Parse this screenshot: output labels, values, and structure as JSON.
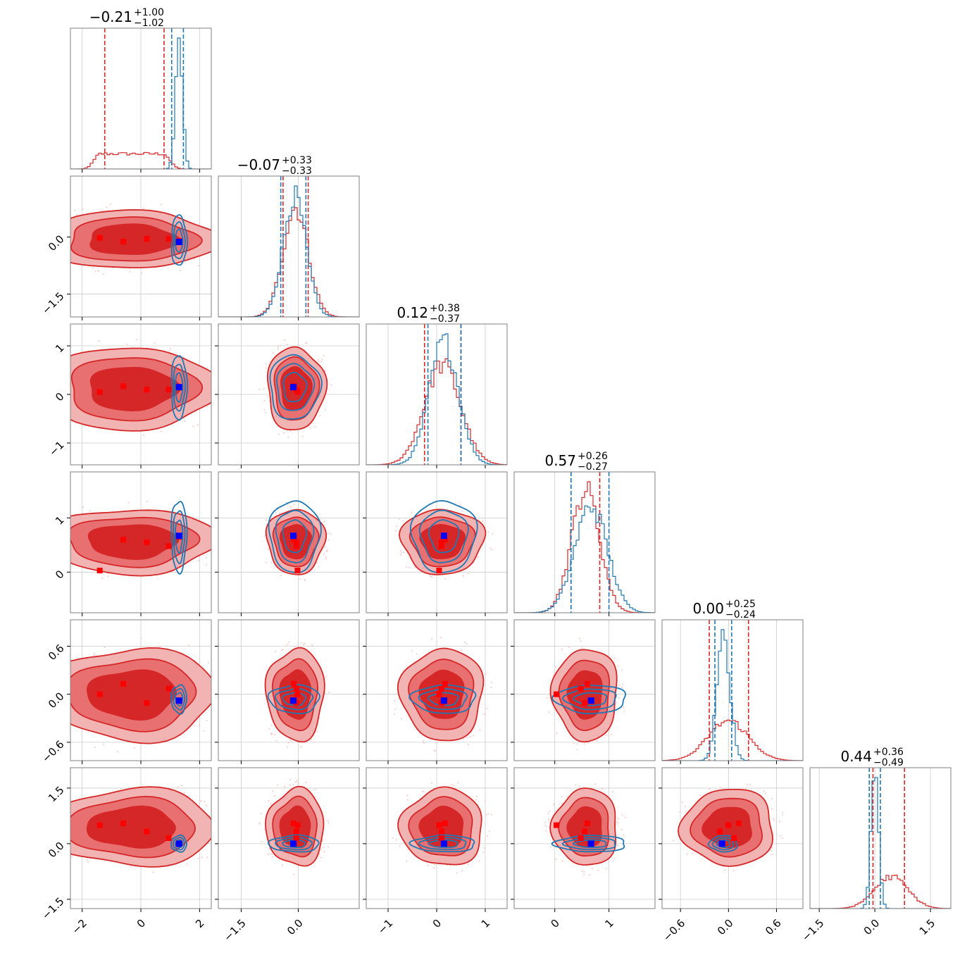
{
  "chart_data": {
    "type": "corner",
    "n_params": 6,
    "colors": {
      "red": "#d62728",
      "red_mid": "#e87070",
      "red_light": "#f2b3b3",
      "blue": "#1f77b4",
      "marker_red": "#ff0000",
      "marker_blue": "#0000ff",
      "grid": "#cccccc"
    },
    "series": [
      {
        "name": "",
        "color": "#d62728",
        "style": "filled contours + histograms"
      },
      {
        "name": "",
        "color": "#1f77b4",
        "style": "line contours + histograms"
      }
    ],
    "params": [
      {
        "range": [
          -2.4,
          2.4
        ],
        "ticks": [
          -2,
          0,
          2
        ],
        "tick_labels": [
          "−2",
          "0",
          "2"
        ],
        "title_value": "−0.21",
        "title_plus": "+1.00",
        "title_minus": "−1.02",
        "red": {
          "mean": -0.3,
          "std": 1.25,
          "flat": true
        },
        "blue": {
          "mean": 1.3,
          "std": 0.12
        },
        "red_q": [
          -1.23,
          0.79
        ],
        "blue_q": [
          1.05,
          1.45
        ]
      },
      {
        "range": [
          -2.1,
          1.6
        ],
        "ticks": [
          -1.5,
          0.0
        ],
        "tick_labels": [
          "−1.5",
          "0.0"
        ],
        "title_value": "−0.07",
        "title_plus": "+0.33",
        "title_minus": "−0.33",
        "red": {
          "mean": -0.07,
          "std": 0.33
        },
        "blue": {
          "mean": -0.1,
          "std": 0.3
        },
        "red_q": [
          -0.4,
          0.26
        ],
        "blue_q": [
          -0.46,
          0.2
        ]
      },
      {
        "range": [
          -1.45,
          1.45
        ],
        "ticks": [
          -1,
          0,
          1
        ],
        "tick_labels": [
          "−1",
          "0",
          "1"
        ],
        "title_value": "0.12",
        "title_plus": "+0.38",
        "title_minus": "−0.37",
        "red": {
          "mean": 0.12,
          "std": 0.37
        },
        "blue": {
          "mean": 0.15,
          "std": 0.3
        },
        "red_q": [
          -0.25,
          0.5
        ],
        "blue_q": [
          -0.18,
          0.5
        ]
      },
      {
        "range": [
          -0.75,
          1.85
        ],
        "ticks": [
          0,
          1
        ],
        "tick_labels": [
          "0",
          "1"
        ],
        "title_value": "0.57",
        "title_plus": "+0.26",
        "title_minus": "−0.27",
        "red": {
          "mean": 0.57,
          "std": 0.26
        },
        "blue": {
          "mean": 0.67,
          "std": 0.3
        },
        "red_q": [
          0.3,
          0.83
        ],
        "blue_q": [
          0.3,
          1.0
        ]
      },
      {
        "range": [
          -0.83,
          0.93
        ],
        "ticks": [
          -0.6,
          0.0,
          0.6
        ],
        "tick_labels": [
          "−0.6",
          "0.0",
          "0.6"
        ],
        "title_value": "0.00",
        "title_plus": "+0.25",
        "title_minus": "−0.24",
        "red": {
          "mean": 0.0,
          "std": 0.25
        },
        "blue": {
          "mean": -0.06,
          "std": 0.08
        },
        "red_q": [
          -0.24,
          0.25
        ],
        "blue_q": [
          -0.17,
          0.04
        ]
      },
      {
        "range": [
          -1.75,
          2.05
        ],
        "ticks": [
          -1.5,
          0.0,
          1.5
        ],
        "tick_labels": [
          "−1.5",
          "0.0",
          "1.5"
        ],
        "title_value": "0.44",
        "title_plus": "+0.36",
        "title_minus": "−0.49",
        "red": {
          "mean": 0.44,
          "std": 0.45
        },
        "blue": {
          "mean": 0.0,
          "std": 0.1
        },
        "red_q": [
          -0.05,
          0.8
        ],
        "blue_q": [
          -0.15,
          0.15
        ]
      }
    ],
    "markers": {
      "red": [
        [
          -1.4,
          -0.02,
          0.05,
          0.03,
          0.0,
          0.5
        ],
        [
          -0.6,
          -0.12,
          0.17,
          0.6,
          0.13,
          0.55
        ],
        [
          0.2,
          -0.05,
          0.1,
          0.55,
          -0.11,
          0.33
        ],
        [
          0.95,
          -0.05,
          0.1,
          0.48,
          0.07,
          0.15
        ],
        [
          1.3,
          -0.1,
          0.15,
          0.65,
          -0.08,
          0.0
        ]
      ],
      "blue": [
        1.3,
        -0.13,
        0.15,
        0.67,
        -0.08,
        0.0
      ]
    },
    "grid": true
  }
}
